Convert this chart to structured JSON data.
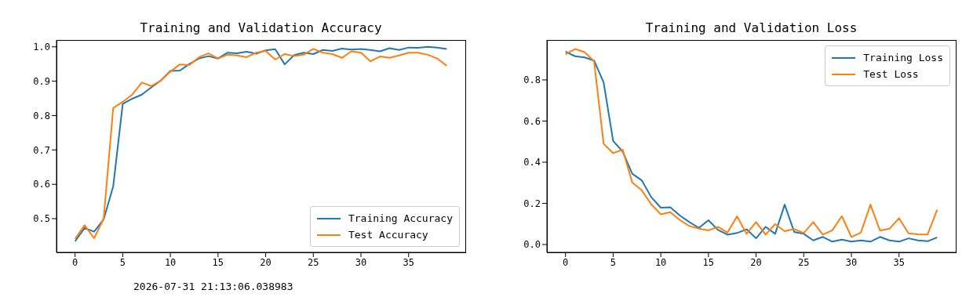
{
  "chart_data": [
    {
      "type": "line",
      "title": "Training and Validation Accuracy",
      "legend": "lower right",
      "x": [
        0,
        1,
        2,
        3,
        4,
        5,
        6,
        7,
        8,
        9,
        10,
        11,
        12,
        13,
        14,
        15,
        16,
        17,
        18,
        19,
        20,
        21,
        22,
        23,
        24,
        25,
        26,
        27,
        28,
        29,
        30,
        31,
        32,
        33,
        34,
        35,
        36,
        37,
        38,
        39
      ],
      "series": [
        {
          "name": "Training Accuracy",
          "color": "#1f77b4",
          "values": [
            0.434,
            0.473,
            0.462,
            0.498,
            0.594,
            0.834,
            0.849,
            0.861,
            0.882,
            0.902,
            0.93,
            0.931,
            0.95,
            0.966,
            0.973,
            0.966,
            0.983,
            0.981,
            0.986,
            0.98,
            0.99,
            0.993,
            0.949,
            0.976,
            0.983,
            0.979,
            0.991,
            0.988,
            0.995,
            0.992,
            0.994,
            0.991,
            0.987,
            0.996,
            0.991,
            0.998,
            0.997,
            1.0,
            0.998,
            0.994
          ]
        },
        {
          "name": "Test Accuracy",
          "color": "#ff7f0e",
          "values": [
            0.441,
            0.481,
            0.443,
            0.5,
            0.822,
            0.84,
            0.861,
            0.896,
            0.886,
            0.902,
            0.928,
            0.949,
            0.947,
            0.97,
            0.981,
            0.966,
            0.977,
            0.975,
            0.97,
            0.983,
            0.988,
            0.963,
            0.979,
            0.973,
            0.977,
            0.994,
            0.983,
            0.979,
            0.968,
            0.987,
            0.983,
            0.958,
            0.972,
            0.968,
            0.975,
            0.983,
            0.983,
            0.977,
            0.966,
            0.945
          ]
        }
      ],
      "xlim": [
        -1.95,
        40.95
      ],
      "xticks": [
        0,
        5,
        10,
        15,
        20,
        25,
        30,
        35
      ],
      "ylim": [
        0.402,
        1.02
      ],
      "yticks": [
        0.5,
        0.6,
        0.7,
        0.8,
        0.9,
        {
          "value": 1,
          "label": "1.0"
        }
      ],
      "annotations": [
        "2026-07-31 21:13:06.038983"
      ]
    },
    {
      "type": "line",
      "title": "Training and Validation Loss",
      "legend": "top right",
      "x": [
        0,
        1,
        2,
        3,
        4,
        5,
        6,
        7,
        8,
        9,
        10,
        11,
        12,
        13,
        14,
        15,
        16,
        17,
        18,
        19,
        20,
        21,
        22,
        23,
        24,
        25,
        26,
        27,
        28,
        29,
        30,
        31,
        32,
        33,
        34,
        35,
        36,
        37,
        38,
        39
      ],
      "series": [
        {
          "name": "Training Loss",
          "color": "#1f77b4",
          "values": [
            0.937,
            0.915,
            0.909,
            0.894,
            0.788,
            0.503,
            0.452,
            0.344,
            0.312,
            0.23,
            0.179,
            0.181,
            0.141,
            0.109,
            0.081,
            0.118,
            0.071,
            0.048,
            0.056,
            0.074,
            0.03,
            0.086,
            0.052,
            0.194,
            0.061,
            0.052,
            0.02,
            0.037,
            0.014,
            0.024,
            0.014,
            0.02,
            0.014,
            0.037,
            0.02,
            0.014,
            0.03,
            0.02,
            0.016,
            0.035
          ]
        },
        {
          "name": "Test Loss",
          "color": "#ff7f0e",
          "values": [
            0.924,
            0.95,
            0.935,
            0.89,
            0.49,
            0.444,
            0.461,
            0.302,
            0.264,
            0.195,
            0.147,
            0.157,
            0.119,
            0.09,
            0.077,
            0.069,
            0.086,
            0.058,
            0.137,
            0.052,
            0.109,
            0.048,
            0.099,
            0.065,
            0.075,
            0.056,
            0.109,
            0.048,
            0.069,
            0.138,
            0.037,
            0.058,
            0.194,
            0.068,
            0.077,
            0.128,
            0.054,
            0.05,
            0.049,
            0.169
          ]
        }
      ],
      "xlim": [
        -1.95,
        40.95
      ],
      "xticks": [
        0,
        5,
        10,
        15,
        20,
        25,
        30,
        35
      ],
      "ylim": [
        -0.038,
        0.994
      ],
      "yticks": [
        {
          "value": 0,
          "label": "0.0"
        },
        0.2,
        0.4,
        0.6,
        0.8
      ]
    }
  ]
}
